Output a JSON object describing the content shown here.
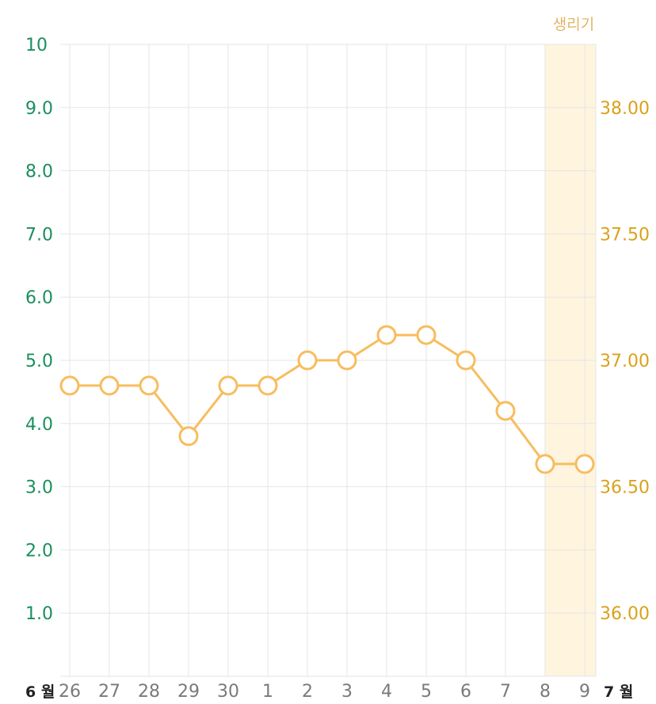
{
  "chart_data": {
    "type": "line",
    "categories": [
      "26",
      "27",
      "28",
      "29",
      "30",
      "1",
      "2",
      "3",
      "4",
      "5",
      "6",
      "7",
      "8",
      "9"
    ],
    "month_labels": {
      "start": "6 월",
      "end": "7 월"
    },
    "left_axis": {
      "range": [
        0,
        10
      ],
      "tick_values": [
        1,
        2,
        3,
        4,
        5,
        6,
        7,
        8,
        9,
        10
      ],
      "tick_labels": [
        "1.0",
        "2.0",
        "3.0",
        "4.0",
        "5.0",
        "6.0",
        "7.0",
        "8.0",
        "9.0",
        "10"
      ],
      "color": "#1a8f5e"
    },
    "right_axis": {
      "range": [
        35.75,
        38.25
      ],
      "tick_values": [
        36.0,
        36.5,
        37.0,
        37.5,
        38.0
      ],
      "tick_labels": [
        "36.00",
        "36.50",
        "37.00",
        "37.50",
        "38.00"
      ],
      "color": "#d9a21b"
    },
    "series": [
      {
        "axis": "right",
        "values": [
          36.9,
          36.9,
          36.9,
          36.7,
          36.9,
          36.9,
          37.0,
          37.0,
          37.1,
          37.1,
          37.0,
          36.8,
          36.59,
          36.59
        ],
        "color": "#f7bd5e"
      }
    ],
    "highlight": {
      "label": "생리기",
      "from_index": 12,
      "to_index": 13,
      "fill": "#fff4de",
      "label_color": "#e3b565"
    },
    "grid": true,
    "grid_color": "#e6e6e6",
    "x_tick_color": "#7a7a7a",
    "month_label_color": "#222222"
  }
}
